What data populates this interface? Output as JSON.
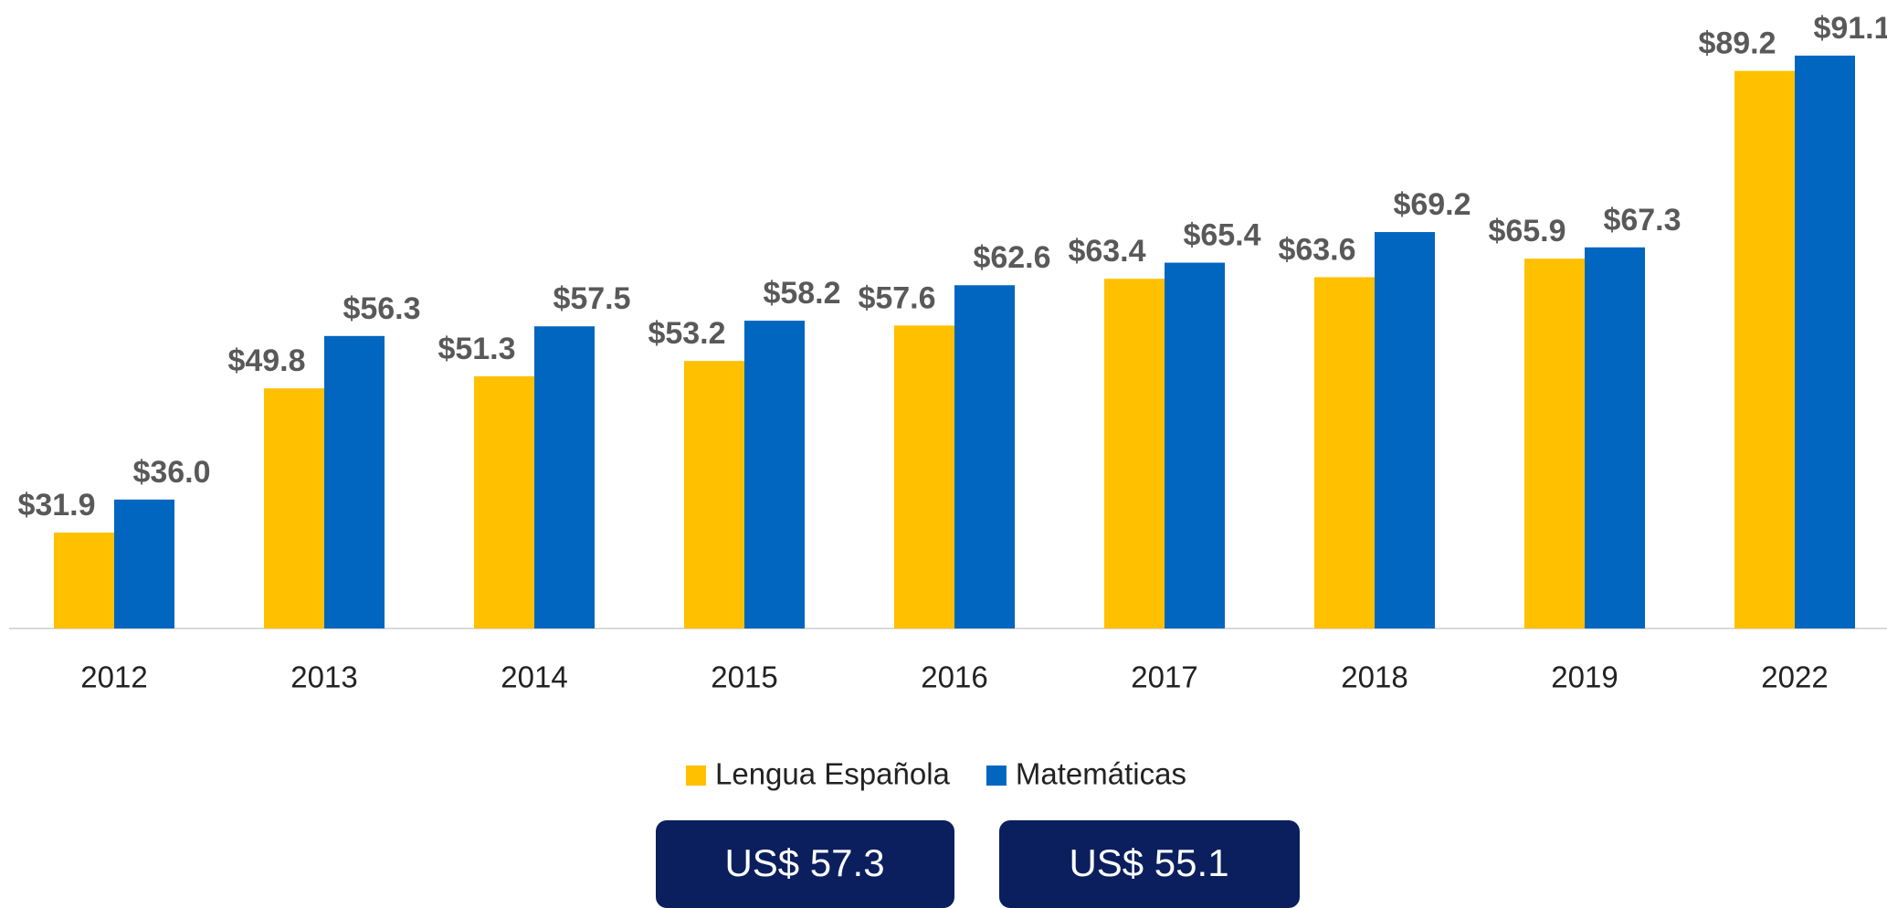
{
  "chart_data": {
    "type": "bar",
    "categories": [
      "2012",
      "2013",
      "2014",
      "2015",
      "2016",
      "2017",
      "2018",
      "2019",
      "2022"
    ],
    "series": [
      {
        "name": "Lengua Española",
        "color": "#ffc000",
        "values": [
          31.9,
          49.8,
          51.3,
          53.2,
          57.6,
          63.4,
          63.6,
          65.9,
          89.2
        ],
        "value_labels": [
          "$31.9",
          "$49.8",
          "$51.3",
          "$53.2",
          "$57.6",
          "$63.4",
          "$63.6",
          "$65.9",
          "$89.2"
        ]
      },
      {
        "name": "Matemáticas",
        "color": "#0066c0",
        "values": [
          36.0,
          56.3,
          57.5,
          58.2,
          62.6,
          65.4,
          69.2,
          67.3,
          91.1
        ],
        "value_labels": [
          "$36.0",
          "$56.3",
          "$57.5",
          "$58.2",
          "$62.6",
          "$65.4",
          "$69.2",
          "$67.3",
          "$91.1"
        ]
      }
    ],
    "ylim": [
      20,
      98
    ],
    "legend": "bottom",
    "annotations": [
      "US$ 57.3",
      "US$ 55.1"
    ]
  }
}
